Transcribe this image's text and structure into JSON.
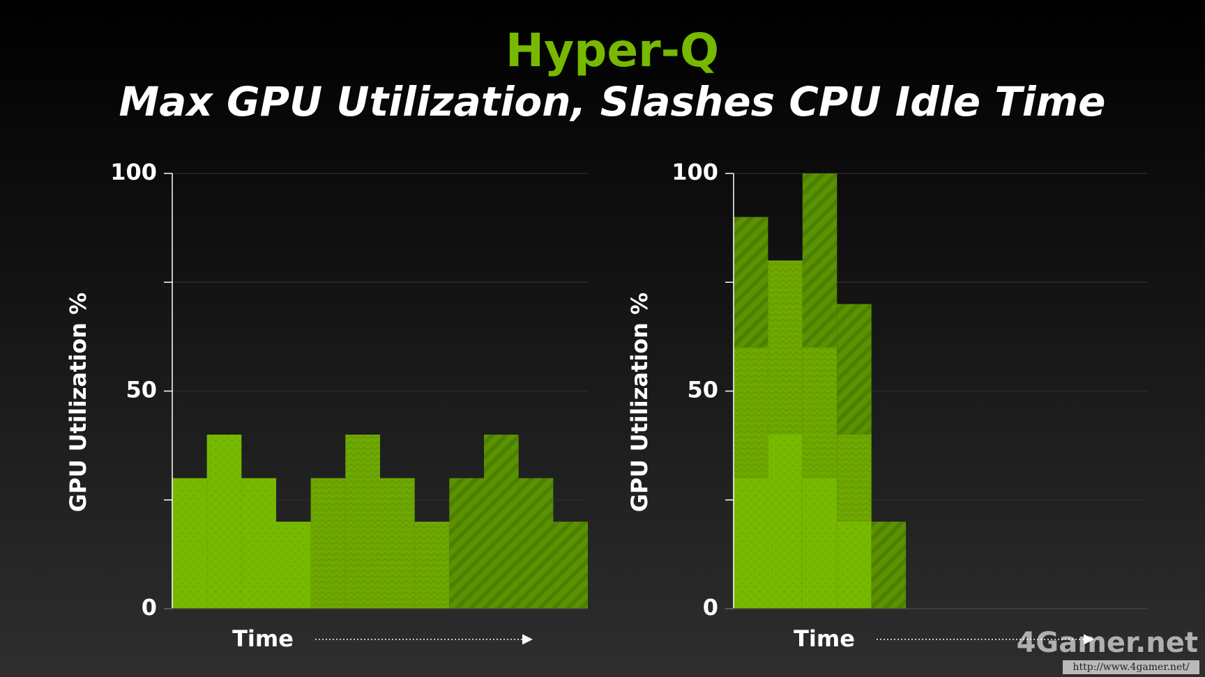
{
  "title": "Hyper-Q",
  "subtitle": "Max GPU Utilization, Slashes CPU Idle Time",
  "watermark": {
    "logo": "4Gamer.net",
    "url": "http://www.4gamer.net/"
  },
  "chart_data": [
    {
      "type": "bar",
      "stacked": true,
      "y_label": "GPU Utilization %",
      "x_label": "Time",
      "categories": [
        null,
        null,
        null,
        null,
        null,
        null,
        null,
        null,
        null,
        null,
        null,
        null
      ],
      "series": [
        {
          "color": "#76b900",
          "values": [
            30,
            40,
            30,
            20,
            null,
            null,
            null,
            null,
            null,
            null,
            null,
            null
          ]
        },
        {
          "color": "#6ea800",
          "values": [
            null,
            null,
            null,
            null,
            30,
            40,
            30,
            20,
            null,
            null,
            null,
            null
          ]
        },
        {
          "color": "#5a9200",
          "values": [
            null,
            null,
            null,
            null,
            null,
            null,
            null,
            null,
            30,
            40,
            30,
            20
          ]
        }
      ],
      "ylim": [
        0,
        100
      ],
      "yticks": [
        0,
        50,
        100
      ],
      "minor_yticks": [
        25,
        75
      ]
    },
    {
      "type": "bar",
      "stacked": true,
      "y_label": "GPU Utilization %",
      "x_label": "Time",
      "categories": [
        null,
        null,
        null,
        null,
        null,
        null,
        null,
        null,
        null,
        null,
        null,
        null
      ],
      "series": [
        {
          "color": "#76b900",
          "values": [
            30,
            40,
            30,
            20,
            null,
            null,
            null,
            null,
            null,
            null,
            null,
            null
          ]
        },
        {
          "color": "#6ea800",
          "values": [
            30,
            40,
            30,
            20,
            null,
            null,
            null,
            null,
            null,
            null,
            null,
            null
          ]
        },
        {
          "color": "#5a9200",
          "values": [
            30,
            null,
            40,
            30,
            20,
            null,
            null,
            null,
            null,
            null,
            null,
            null
          ]
        }
      ],
      "ylim": [
        0,
        100
      ],
      "yticks": [
        0,
        50,
        100
      ],
      "minor_yticks": [
        25,
        75
      ]
    }
  ]
}
